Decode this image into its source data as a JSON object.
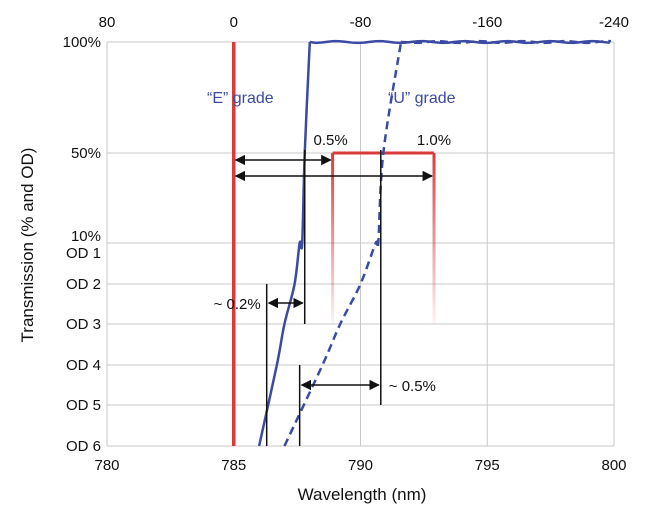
{
  "chart_data": {
    "type": "line",
    "title": "",
    "xlabel": "Wavelength (nm)",
    "ylabel": "Transmission (% and OD)",
    "x_axis": {
      "range": [
        780,
        800
      ],
      "ticks": [
        780,
        785,
        790,
        795,
        800
      ],
      "tick_labels": [
        "780",
        "785",
        "790",
        "795",
        "800"
      ]
    },
    "top_axis": {
      "ticks": [
        780,
        785,
        790,
        795,
        800
      ],
      "tick_labels": [
        "80",
        "0",
        "-80",
        "-160",
        "-240"
      ]
    },
    "y_axis": {
      "levels": [
        "100%",
        "50%",
        "10%",
        "OD 1",
        "OD 2",
        "OD 3",
        "OD 4",
        "OD 5",
        "OD 6"
      ]
    },
    "grid": true,
    "colors": {
      "laser": "#d93a3a",
      "e_grade": "#3b4aa3",
      "u_grade": "#3b4aa3",
      "grid": "#c8c8c8",
      "arrow": "#111111"
    },
    "series": [
      {
        "name": "“E” grade",
        "style": "solid",
        "points": [
          [
            786.0,
            "OD 6"
          ],
          [
            786.7,
            "OD 4"
          ],
          [
            787.0,
            "OD 3"
          ],
          [
            787.4,
            "OD 2"
          ],
          [
            787.6,
            "OD 1"
          ],
          [
            787.7,
            "10%"
          ],
          [
            787.8,
            "50%"
          ],
          [
            788.0,
            "100%"
          ],
          [
            800.0,
            "100%"
          ]
        ]
      },
      {
        "name": "“U” grade",
        "style": "dashed",
        "points": [
          [
            787.0,
            "OD 6"
          ],
          [
            788.5,
            "OD 4"
          ],
          [
            789.2,
            "OD 3"
          ],
          [
            790.0,
            "OD 2"
          ],
          [
            790.6,
            "OD 1"
          ],
          [
            790.7,
            "10%"
          ],
          [
            790.9,
            "50%"
          ],
          [
            791.6,
            "100%"
          ],
          [
            800.0,
            "100%"
          ]
        ]
      }
    ],
    "laser_line": {
      "x": 785,
      "y_from": "OD 6",
      "y_to": "100%"
    },
    "edge_markers": [
      {
        "label": "0.5%",
        "x": 788.9
      },
      {
        "label": "1.0%",
        "x": 792.9
      }
    ],
    "annotations": [
      {
        "label": "~ 0.2%",
        "from": 786.3,
        "to": 787.8
      },
      {
        "label": "~ 0.5%",
        "from": 787.6,
        "to": 790.8
      }
    ]
  }
}
